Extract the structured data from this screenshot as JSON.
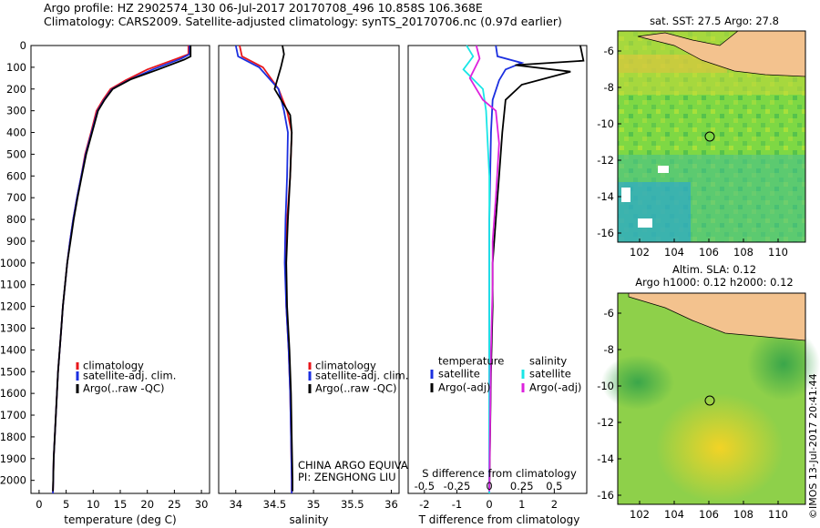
{
  "header": {
    "line1": "Argo profile: HZ 2902574_130 06-Jul-2017 20170708_496 10.858S 106.368E",
    "line2": "Climatology: CARS2009. Satellite-adjusted climatology: synTS_20170706.nc (0.97d earlier)"
  },
  "profile_charts": {
    "depth_ticks": [
      0,
      100,
      200,
      300,
      400,
      500,
      600,
      700,
      800,
      900,
      1000,
      1100,
      1200,
      1300,
      1400,
      1500,
      1600,
      1700,
      1800,
      1900,
      2000
    ],
    "ylim": [
      0,
      2060
    ],
    "temperature": {
      "xlabel": "temperature (deg C)",
      "xlim": [
        -1.5,
        31.5
      ],
      "x_ticks": [
        0,
        5,
        10,
        15,
        20,
        25,
        30
      ],
      "legend": [
        "climatology",
        "satellite-adj. clim.",
        "Argo(..raw -QC)"
      ]
    },
    "salinity": {
      "xlabel": "salinity",
      "xlim": [
        33.78,
        36.1
      ],
      "x_ticks": [
        "34",
        "34.5",
        "35",
        "35.5",
        "36"
      ],
      "x_tick_values": [
        34,
        34.5,
        35,
        35.5,
        36
      ],
      "legend": [
        "climatology",
        "satellite-adj. clim.",
        "Argo(..raw -QC)"
      ],
      "annotation_line1": "CHINA ARGO EQUIVALENT",
      "annotation_line2": "PI: ZENGHONG LIU"
    },
    "difference": {
      "xlabel": "T difference from climatology",
      "top_label": "S difference from climatology",
      "xlim": [
        -2.5,
        3.0
      ],
      "x_ticks": [
        "-2",
        "-1",
        "0",
        "1",
        "2"
      ],
      "x_tick_values": [
        -2,
        -1,
        0,
        1,
        2
      ],
      "s_ticks": [
        "-0.5",
        "-0.25",
        "0",
        "0.25",
        "0.5"
      ],
      "s_tick_values": [
        -2,
        -1,
        0,
        1,
        2
      ],
      "legend_left_title": "temperature",
      "legend_right_title": "salinity",
      "legend_left": [
        "satellite",
        "Argo(-adj)"
      ],
      "legend_right": [
        "satellite",
        "Argo(-adj)"
      ]
    }
  },
  "sst_map": {
    "title": "sat. SST: 27.5 Argo: 27.8",
    "lon_ticks": [
      "102",
      "104",
      "106",
      "108",
      "110"
    ],
    "lat_ticks": [
      "-6",
      "-8",
      "-10",
      "-12",
      "-14",
      "-16"
    ]
  },
  "sla_map": {
    "title1": "Altim. SLA: 0.12",
    "title2": "Argo h1000: 0.12 h2000: 0.12",
    "lon_ticks": [
      "102",
      "104",
      "106",
      "108",
      "110"
    ],
    "lat_ticks": [
      "-6",
      "-8",
      "-10",
      "-12",
      "-14",
      "-16"
    ]
  },
  "stamp": "©IMOS 13-Jul-2017 20:41:44",
  "colors": {
    "climatology": "#e8161b",
    "satellite_adj": "#1b2fe0",
    "argo": "#000000",
    "salinity_satellite": "#19e6e6",
    "salinity_argo": "#dd22dd"
  },
  "chart_data": [
    {
      "type": "line",
      "name": "temperature profile",
      "x_unit": "deg C",
      "y_unit": "depth",
      "series": [
        {
          "name": "climatology",
          "points": [
            [
              27.6,
              0
            ],
            [
              27.6,
              40
            ],
            [
              25.5,
              60
            ],
            [
              20,
              110
            ],
            [
              16,
              160
            ],
            [
              13.2,
              200
            ],
            [
              11.8,
              250
            ],
            [
              10.6,
              300
            ],
            [
              9.6,
              400
            ],
            [
              8.5,
              500
            ],
            [
              7.8,
              600
            ],
            [
              7.0,
              700
            ],
            [
              6.3,
              800
            ],
            [
              5.7,
              900
            ],
            [
              5.2,
              1000
            ],
            [
              4.8,
              1100
            ],
            [
              4.4,
              1200
            ],
            [
              4.1,
              1300
            ],
            [
              3.8,
              1400
            ],
            [
              3.5,
              1500
            ],
            [
              3.3,
              1600
            ],
            [
              3.1,
              1700
            ],
            [
              2.9,
              1800
            ],
            [
              2.7,
              1900
            ],
            [
              2.6,
              2000
            ],
            [
              2.55,
              2060
            ]
          ]
        },
        {
          "name": "satellite-adj. clim.",
          "points": [
            [
              27.8,
              0
            ],
            [
              27.8,
              40
            ],
            [
              26.3,
              60
            ],
            [
              21,
              110
            ],
            [
              16.5,
              160
            ],
            [
              13.5,
              200
            ],
            [
              12,
              250
            ],
            [
              10.8,
              300
            ],
            [
              9.7,
              400
            ],
            [
              8.6,
              500
            ],
            [
              7.8,
              600
            ],
            [
              7.0,
              700
            ],
            [
              6.3,
              800
            ],
            [
              5.7,
              900
            ],
            [
              5.2,
              1000
            ],
            [
              4.8,
              1100
            ],
            [
              4.4,
              1200
            ],
            [
              4.1,
              1300
            ],
            [
              3.8,
              1400
            ],
            [
              3.5,
              1500
            ],
            [
              3.3,
              1600
            ],
            [
              3.1,
              1700
            ],
            [
              2.9,
              1800
            ],
            [
              2.7,
              1900
            ],
            [
              2.6,
              2000
            ],
            [
              2.55,
              2060
            ]
          ]
        },
        {
          "name": "Argo(..raw -QC)",
          "points": [
            [
              28.0,
              0
            ],
            [
              28.0,
              50
            ],
            [
              26.8,
              65
            ],
            [
              22,
              110
            ],
            [
              17,
              155
            ],
            [
              13.6,
              200
            ],
            [
              12.1,
              250
            ],
            [
              10.9,
              300
            ],
            [
              9.8,
              400
            ],
            [
              8.7,
              500
            ],
            [
              7.9,
              600
            ],
            [
              7.1,
              700
            ],
            [
              6.4,
              800
            ],
            [
              5.8,
              900
            ],
            [
              5.2,
              1000
            ],
            [
              4.8,
              1100
            ],
            [
              4.4,
              1200
            ],
            [
              4.1,
              1300
            ],
            [
              3.8,
              1400
            ],
            [
              3.5,
              1500
            ],
            [
              3.3,
              1600
            ],
            [
              3.1,
              1700
            ],
            [
              2.9,
              1800
            ],
            [
              2.7,
              1900
            ],
            [
              2.6,
              2000
            ],
            [
              2.55,
              2050
            ]
          ]
        }
      ]
    },
    {
      "type": "line",
      "name": "salinity profile",
      "x_unit": "salinity",
      "y_unit": "depth",
      "series": [
        {
          "name": "climatology",
          "points": [
            [
              34.05,
              0
            ],
            [
              34.08,
              50
            ],
            [
              34.35,
              100
            ],
            [
              34.55,
              200
            ],
            [
              34.66,
              300
            ],
            [
              34.72,
              400
            ],
            [
              34.7,
              600
            ],
            [
              34.66,
              800
            ],
            [
              34.64,
              1000
            ],
            [
              34.65,
              1200
            ],
            [
              34.68,
              1400
            ],
            [
              34.7,
              1600
            ],
            [
              34.71,
              1800
            ],
            [
              34.72,
              2000
            ],
            [
              34.72,
              2060
            ]
          ]
        },
        {
          "name": "satellite-adj. clim.",
          "points": [
            [
              34.0,
              0
            ],
            [
              34.03,
              50
            ],
            [
              34.3,
              100
            ],
            [
              34.55,
              200
            ],
            [
              34.62,
              300
            ],
            [
              34.67,
              400
            ],
            [
              34.66,
              600
            ],
            [
              34.64,
              800
            ],
            [
              34.63,
              1000
            ],
            [
              34.65,
              1200
            ],
            [
              34.68,
              1400
            ],
            [
              34.7,
              1600
            ],
            [
              34.71,
              1800
            ],
            [
              34.72,
              2000
            ],
            [
              34.72,
              2060
            ]
          ]
        },
        {
          "name": "Argo(..raw -QC)",
          "points": [
            [
              34.6,
              0
            ],
            [
              34.62,
              40
            ],
            [
              34.58,
              100
            ],
            [
              34.5,
              200
            ],
            [
              34.7,
              320
            ],
            [
              34.72,
              400
            ],
            [
              34.7,
              600
            ],
            [
              34.67,
              800
            ],
            [
              34.65,
              1000
            ],
            [
              34.66,
              1200
            ],
            [
              34.69,
              1400
            ],
            [
              34.71,
              1600
            ],
            [
              34.72,
              1800
            ],
            [
              34.73,
              2000
            ],
            [
              34.73,
              2050
            ]
          ]
        }
      ]
    },
    {
      "type": "line",
      "name": "difference from climatology",
      "x_unit": "T difference (deg C)",
      "y_unit": "depth",
      "series": [
        {
          "name": "temperature satellite",
          "points": [
            [
              0.2,
              0
            ],
            [
              0.25,
              50
            ],
            [
              1.0,
              80
            ],
            [
              0.5,
              110
            ],
            [
              0.3,
              160
            ],
            [
              0.1,
              250
            ],
            [
              0.05,
              400
            ],
            [
              0.0,
              800
            ],
            [
              0.0,
              1200
            ],
            [
              0.0,
              2060
            ]
          ]
        },
        {
          "name": "temperature Argo(-adj)",
          "points": [
            [
              2.8,
              0
            ],
            [
              2.9,
              70
            ],
            [
              0.8,
              90
            ],
            [
              2.5,
              120
            ],
            [
              1.0,
              180
            ],
            [
              0.5,
              250
            ],
            [
              0.4,
              400
            ],
            [
              0.3,
              600
            ],
            [
              0.2,
              800
            ],
            [
              0.1,
              1000
            ],
            [
              0.1,
              1200
            ],
            [
              0.05,
              1500
            ],
            [
              0.0,
              2050
            ]
          ]
        },
        {
          "name": "salinity satellite",
          "points": [
            [
              -0.7,
              0
            ],
            [
              -0.5,
              50
            ],
            [
              -0.8,
              110
            ],
            [
              -0.2,
              200
            ],
            [
              -0.1,
              300
            ],
            [
              0.0,
              600
            ],
            [
              0.0,
              1200
            ],
            [
              0.0,
              2060
            ]
          ]
        },
        {
          "name": "salinity Argo(-adj)",
          "points": [
            [
              -0.4,
              0
            ],
            [
              -0.3,
              60
            ],
            [
              -0.6,
              150
            ],
            [
              -0.2,
              250
            ],
            [
              0.2,
              300
            ],
            [
              0.3,
              450
            ],
            [
              0.2,
              700
            ],
            [
              0.1,
              900
            ],
            [
              0.1,
              1100
            ],
            [
              0.05,
              1400
            ],
            [
              0.0,
              2050
            ]
          ]
        }
      ]
    }
  ]
}
